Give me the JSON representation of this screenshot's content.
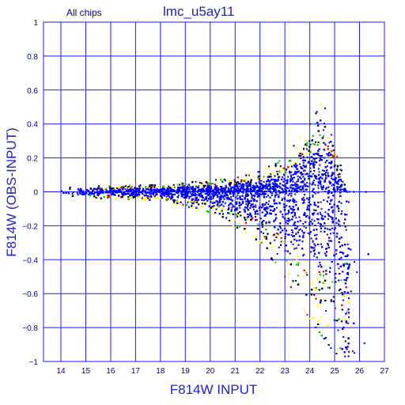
{
  "chart_data": {
    "type": "scatter",
    "title": "lmc_u5ay11",
    "subtitle": "All chips",
    "xlabel": "F814W INPUT",
    "ylabel": "F814W (OBS-INPUT)",
    "xlim": [
      13.3,
      27
    ],
    "ylim": [
      -1,
      1
    ],
    "xticks": [
      "14",
      "15",
      "16",
      "17",
      "18",
      "19",
      "20",
      "21",
      "22",
      "23",
      "24",
      "25",
      "26",
      "27"
    ],
    "yticks": [
      "1",
      "0.8",
      "0.6",
      "0.4",
      "0.2",
      "0",
      "−0.2",
      "−0.4",
      "−0.6",
      "−0.8",
      "−1"
    ],
    "grid": true,
    "colors": {
      "axes": "#1a1aff",
      "points": [
        "#0000ff",
        "#000000",
        "#ffff00",
        "#00cc00",
        "#ff0000"
      ]
    },
    "point_trend": {
      "x_start": 14.0,
      "x_peak": 24.2,
      "x_end": 26.5,
      "mean": "approximately 0 up to about 22, curving slightly negative toward 25",
      "upper_envelope": [
        [
          14,
          0.03
        ],
        [
          18,
          0.04
        ],
        [
          21,
          0.08
        ],
        [
          22,
          0.12
        ],
        [
          23,
          0.2
        ],
        [
          24,
          0.4
        ],
        [
          24.6,
          0.55
        ],
        [
          25,
          0.3
        ],
        [
          25.5,
          0.0
        ]
      ],
      "lower_envelope": [
        [
          14,
          -0.03
        ],
        [
          18,
          -0.05
        ],
        [
          20,
          -0.12
        ],
        [
          22,
          -0.3
        ],
        [
          23,
          -0.5
        ],
        [
          24,
          -0.75
        ],
        [
          25,
          -0.95
        ],
        [
          26,
          -1.0
        ]
      ]
    }
  }
}
